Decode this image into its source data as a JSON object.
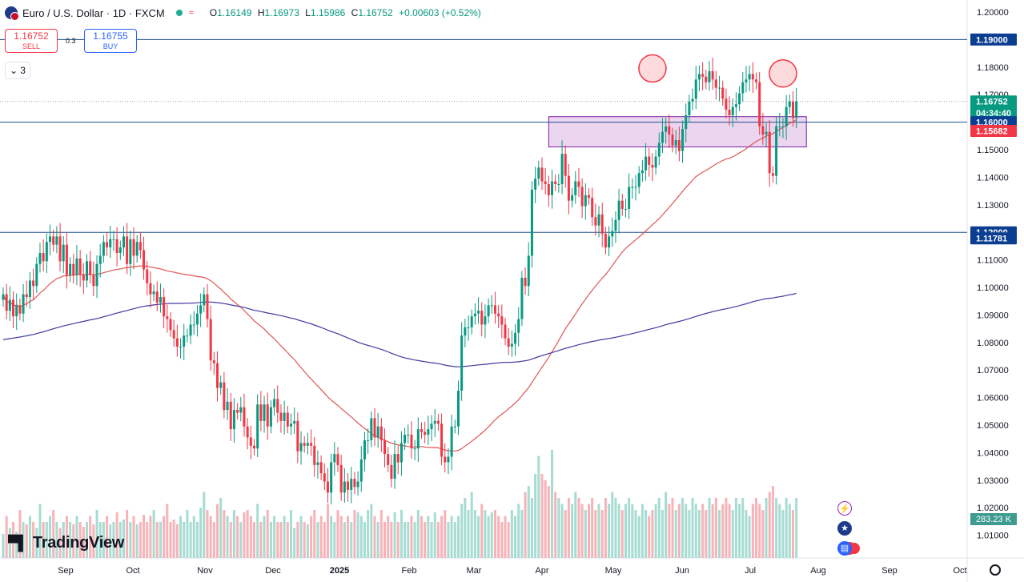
{
  "header": {
    "title": "Euro / U.S. Dollar · 1D · FXCM",
    "open_key": "O",
    "open": "1.16149",
    "high_key": "H",
    "high": "1.16973",
    "low_key": "L",
    "low": "1.15986",
    "close_key": "C",
    "close": "1.16752",
    "change": "+0.00603 (+0.52%)"
  },
  "trade": {
    "sell_price": "1.16752",
    "sell_label": "SELL",
    "buy_price": "1.16755",
    "buy_label": "BUY",
    "spread": "0.3"
  },
  "indicators_count": "3",
  "logo_text": "TradingView",
  "colors": {
    "up": "#089981",
    "down": "#f23645",
    "ma_fast": "#e05555",
    "ma_slow": "#3f3a9e",
    "zone": "#e1bee7",
    "level_line": "#1f4e8c",
    "label_blue": "#0b3d91",
    "label_red": "#f23645"
  },
  "chart_data": {
    "type": "candlestick",
    "y_axis_ticks": [
      "1.20000",
      "1.19000",
      "1.18000",
      "1.17000",
      "1.16000",
      "1.15000",
      "1.14000",
      "1.13000",
      "1.12000",
      "1.11000",
      "1.10000",
      "1.09000",
      "1.08000",
      "1.07000",
      "1.06000",
      "1.05000",
      "1.04000",
      "1.03000",
      "1.02000",
      "1.01000"
    ],
    "ylim": [
      1.005,
      1.2035
    ],
    "x_axis_ticks": [
      "Sep",
      "Oct",
      "Nov",
      "Dec",
      "2025",
      "Feb",
      "Mar",
      "Apr",
      "May",
      "Jun",
      "Jul",
      "Aug",
      "Sep",
      "Oct"
    ],
    "horizontal_levels": [
      1.19,
      1.16,
      1.12
    ],
    "price_labels": [
      {
        "text": "1.19000",
        "value": 1.19,
        "style": "blue"
      },
      {
        "text": "1.16752",
        "value": 1.16752,
        "style": "green"
      },
      {
        "text": "04:34:40",
        "value": 1.1634,
        "style": "green"
      },
      {
        "text": "1.16000",
        "value": 1.16,
        "style": "blue"
      },
      {
        "text": "1.15682",
        "value": 1.15682,
        "style": "red"
      },
      {
        "text": "1.12000",
        "value": 1.12,
        "style": "blue"
      },
      {
        "text": "1.11781",
        "value": 1.11781,
        "style": "blue"
      }
    ],
    "volume_label": "283.23 K",
    "zone": {
      "start_index": 163,
      "end_index": 240,
      "top": 1.162,
      "bottom": 1.151
    },
    "highlights": [
      {
        "index": 194,
        "price": 1.1795
      },
      {
        "index": 233,
        "price": 1.1777
      }
    ],
    "closes": [
      1.0975,
      1.0915,
      1.0955,
      1.0895,
      1.0935,
      1.0905,
      1.0975,
      1.0965,
      1.1025,
      1.1005,
      1.1085,
      1.1125,
      1.1095,
      1.1165,
      1.1185,
      1.1155,
      1.1185,
      1.1095,
      1.1155,
      1.1045,
      1.1085,
      1.1045,
      1.1105,
      1.1045,
      1.1025,
      1.1095,
      1.1045,
      1.1005,
      1.1085,
      1.1115,
      1.1165,
      1.1145,
      1.1175,
      1.1175,
      1.1125,
      1.1145,
      1.1185,
      1.1085,
      1.1175,
      1.1115,
      1.1165,
      1.1135,
      1.1065,
      1.1015,
      1.0975,
      1.0985,
      1.0945,
      1.0965,
      1.0895,
      1.0885,
      1.0845,
      1.0815,
      1.0785,
      1.0785,
      1.0825,
      1.0825,
      1.0865,
      1.0865,
      1.0905,
      1.0935,
      1.0975,
      1.0885,
      1.0735,
      1.0725,
      1.0635,
      1.0655,
      1.0555,
      1.0585,
      1.0485,
      1.0555,
      1.0545,
      1.0565,
      1.0495,
      1.0455,
      1.0425,
      1.0415,
      1.0575,
      1.0515,
      1.0575,
      1.0495,
      1.0565,
      1.0595,
      1.0545,
      1.0515,
      1.0545,
      1.0495,
      1.0505,
      1.0515,
      1.0405,
      1.0435,
      1.0425,
      1.0435,
      1.0425,
      1.0355,
      1.0365,
      1.0325,
      1.0295,
      1.0255,
      1.0365,
      1.0395,
      1.0355,
      1.0255,
      1.0295,
      1.0265,
      1.0305,
      1.0275,
      1.0295,
      1.0375,
      1.0445,
      1.0445,
      1.0525,
      1.0455,
      1.0495,
      1.0445,
      1.0395,
      1.0355,
      1.0305,
      1.0395,
      1.0365,
      1.0435,
      1.0465,
      1.0465,
      1.0415,
      1.0415,
      1.0485,
      1.0475,
      1.0465,
      1.0485,
      1.0505,
      1.0515,
      1.0505,
      1.0385,
      1.0365,
      1.0385,
      1.0495,
      1.0495,
      1.0625,
      1.0825,
      1.0855,
      1.0855,
      1.0895,
      1.0905,
      1.0915,
      1.0865,
      1.0895,
      1.0935,
      1.0935,
      1.0905,
      1.0895,
      1.0865,
      1.0815,
      1.0785,
      1.0795,
      1.0835,
      1.0885,
      1.1035,
      1.1005,
      1.1115,
      1.1355,
      1.1395,
      1.1435,
      1.1385,
      1.1375,
      1.1335,
      1.1385,
      1.1375,
      1.1375,
      1.1485,
      1.1405,
      1.1315,
      1.1335,
      1.1385,
      1.1365,
      1.1295,
      1.1335,
      1.1325,
      1.1255,
      1.1225,
      1.1265,
      1.1195,
      1.1145,
      1.1185,
      1.1205,
      1.1245,
      1.1315,
      1.1285,
      1.1285,
      1.1365,
      1.1365,
      1.1365,
      1.1415,
      1.1425,
      1.1475,
      1.1445,
      1.1435,
      1.1475,
      1.1525,
      1.1565,
      1.1585,
      1.1555,
      1.1515,
      1.1535,
      1.1495,
      1.1575,
      1.1625,
      1.1675,
      1.1685,
      1.1755,
      1.1775,
      1.1765,
      1.1745,
      1.1785,
      1.1755,
      1.1725,
      1.1725,
      1.1685,
      1.1645,
      1.1625,
      1.1655,
      1.1665,
      1.1705,
      1.1745,
      1.1755,
      1.1775,
      1.1755,
      1.1745,
      1.1585,
      1.1555,
      1.1565,
      1.1415,
      1.1405,
      1.1585,
      1.1585,
      1.1585,
      1.1655,
      1.1675,
      1.1615,
      1.16752
    ],
    "vol_pct": [
      0.2,
      0.35,
      0.25,
      0.3,
      0.22,
      0.4,
      0.3,
      0.28,
      0.35,
      0.3,
      0.25,
      0.45,
      0.3,
      0.3,
      0.35,
      0.4,
      0.3,
      0.25,
      0.3,
      0.35,
      0.3,
      0.28,
      0.35,
      0.3,
      0.26,
      0.3,
      0.35,
      0.28,
      0.4,
      0.3,
      0.3,
      0.35,
      0.28,
      0.3,
      0.38,
      0.3,
      0.32,
      0.4,
      0.3,
      0.35,
      0.28,
      0.3,
      0.36,
      0.3,
      0.35,
      0.4,
      0.3,
      0.3,
      0.35,
      0.45,
      0.3,
      0.32,
      0.28,
      0.35,
      0.3,
      0.4,
      0.3,
      0.35,
      0.3,
      0.42,
      0.55,
      0.4,
      0.35,
      0.3,
      0.45,
      0.5,
      0.4,
      0.35,
      0.3,
      0.4,
      0.35,
      0.3,
      0.38,
      0.4,
      0.35,
      0.3,
      0.45,
      0.3,
      0.35,
      0.4,
      0.3,
      0.35,
      0.3,
      0.3,
      0.35,
      0.3,
      0.4,
      0.25,
      0.3,
      0.35,
      0.3,
      0.28,
      0.35,
      0.4,
      0.3,
      0.35,
      0.3,
      0.45,
      0.35,
      0.3,
      0.4,
      0.35,
      0.3,
      0.35,
      0.3,
      0.4,
      0.38,
      0.35,
      0.3,
      0.4,
      0.45,
      0.35,
      0.3,
      0.4,
      0.3,
      0.35,
      0.3,
      0.38,
      0.3,
      0.4,
      0.3,
      0.3,
      0.35,
      0.3,
      0.4,
      0.35,
      0.3,
      0.35,
      0.3,
      0.38,
      0.3,
      0.35,
      0.4,
      0.3,
      0.35,
      0.3,
      0.35,
      0.45,
      0.5,
      0.4,
      0.55,
      0.4,
      0.35,
      0.45,
      0.4,
      0.35,
      0.38,
      0.4,
      0.35,
      0.3,
      0.35,
      0.3,
      0.4,
      0.35,
      0.45,
      0.4,
      0.55,
      0.6,
      0.5,
      0.7,
      0.85,
      0.7,
      0.65,
      0.6,
      0.9,
      0.55,
      0.5,
      0.45,
      0.4,
      0.5,
      0.45,
      0.55,
      0.5,
      0.45,
      0.4,
      0.45,
      0.5,
      0.4,
      0.45,
      0.4,
      0.5,
      0.45,
      0.55,
      0.5,
      0.45,
      0.4,
      0.45,
      0.5,
      0.45,
      0.4,
      0.35,
      0.45,
      0.4,
      0.35,
      0.4,
      0.45,
      0.5,
      0.4,
      0.55,
      0.45,
      0.5,
      0.4,
      0.45,
      0.5,
      0.45,
      0.4,
      0.5,
      0.45,
      0.4,
      0.45,
      0.4,
      0.5,
      0.45,
      0.5,
      0.4,
      0.45,
      0.5,
      0.45,
      0.4,
      0.5,
      0.45,
      0.5,
      0.4,
      0.35,
      0.45,
      0.5,
      0.45,
      0.4,
      0.5,
      0.55,
      0.6,
      0.5,
      0.45,
      0.4,
      0.5,
      0.45,
      0.4,
      0.5,
      0.55,
      0.65,
      0.5,
      0.45,
      0.5,
      0.55,
      0.45,
      0.5,
      0.3
    ]
  }
}
